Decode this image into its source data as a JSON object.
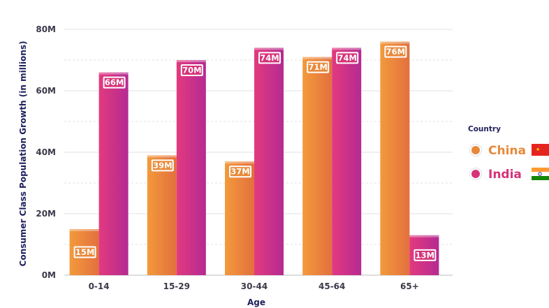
{
  "chart_data": {
    "type": "bar",
    "xlabel": "Age",
    "ylabel": "Consumer Class Population Growth (in millions)",
    "categories": [
      "0-14",
      "15-29",
      "30-44",
      "45-64",
      "65+"
    ],
    "ylim": [
      0,
      80
    ],
    "yticks": [
      0,
      20,
      40,
      60,
      80
    ],
    "ytick_labels": [
      "0M",
      "20M",
      "40M",
      "60M",
      "80M"
    ],
    "grid": true,
    "legend": {
      "title": "Country",
      "placement": "right"
    },
    "series": [
      {
        "name": "China",
        "values": [
          15,
          39,
          37,
          71,
          76
        ],
        "labels": [
          "15M",
          "39M",
          "37M",
          "71M",
          "76M"
        ],
        "color": "#e8893a",
        "flag": "china-flag-icon"
      },
      {
        "name": "India",
        "values": [
          66,
          70,
          74,
          74,
          13
        ],
        "labels": [
          "66M",
          "70M",
          "74M",
          "74M",
          "13M"
        ],
        "color": "#d6337a",
        "flag": "india-flag-icon"
      }
    ]
  }
}
